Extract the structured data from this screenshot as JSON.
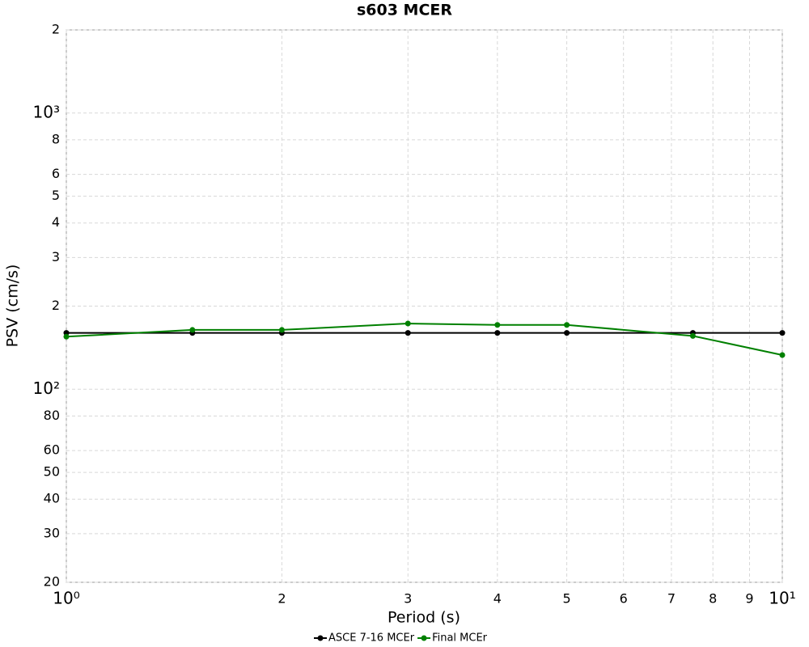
{
  "chart_data": {
    "type": "line",
    "title": "s603 MCER",
    "x_label": "Period (s)",
    "y_label": "PSV (cm/s)",
    "x": [
      1,
      1.5,
      2,
      3,
      4,
      5,
      7.5,
      10
    ],
    "series": [
      {
        "name": "ASCE 7-16 MCEr",
        "color": "#000000",
        "values": [
          160,
          160,
          160,
          160,
          160,
          160,
          160,
          160
        ]
      },
      {
        "name": "Final MCEr",
        "color": "#008000",
        "values": [
          155,
          164,
          164,
          173,
          171,
          171,
          156,
          133
        ]
      }
    ],
    "xscale": "log",
    "yscale": "log",
    "xlim": [
      1,
      10
    ],
    "ylim": [
      20,
      2000
    ],
    "xticks": [
      {
        "value": 1,
        "label": "10⁰"
      },
      2,
      3,
      4,
      5,
      6,
      7,
      8,
      9,
      {
        "value": 10,
        "label": "10¹"
      }
    ],
    "yticks": [
      20,
      30,
      40,
      50,
      60,
      80,
      {
        "value": 100,
        "label": "10²"
      },
      {
        "value": 200,
        "label": "2"
      },
      {
        "value": 300,
        "label": "3"
      },
      {
        "value": 400,
        "label": "4"
      },
      {
        "value": 500,
        "label": "5"
      },
      {
        "value": 600,
        "label": "6"
      },
      {
        "value": 800,
        "label": "8"
      },
      {
        "value": 1000,
        "label": "10³"
      },
      {
        "value": 2000,
        "label": "2"
      }
    ],
    "grid": true,
    "legend": "bottom"
  }
}
